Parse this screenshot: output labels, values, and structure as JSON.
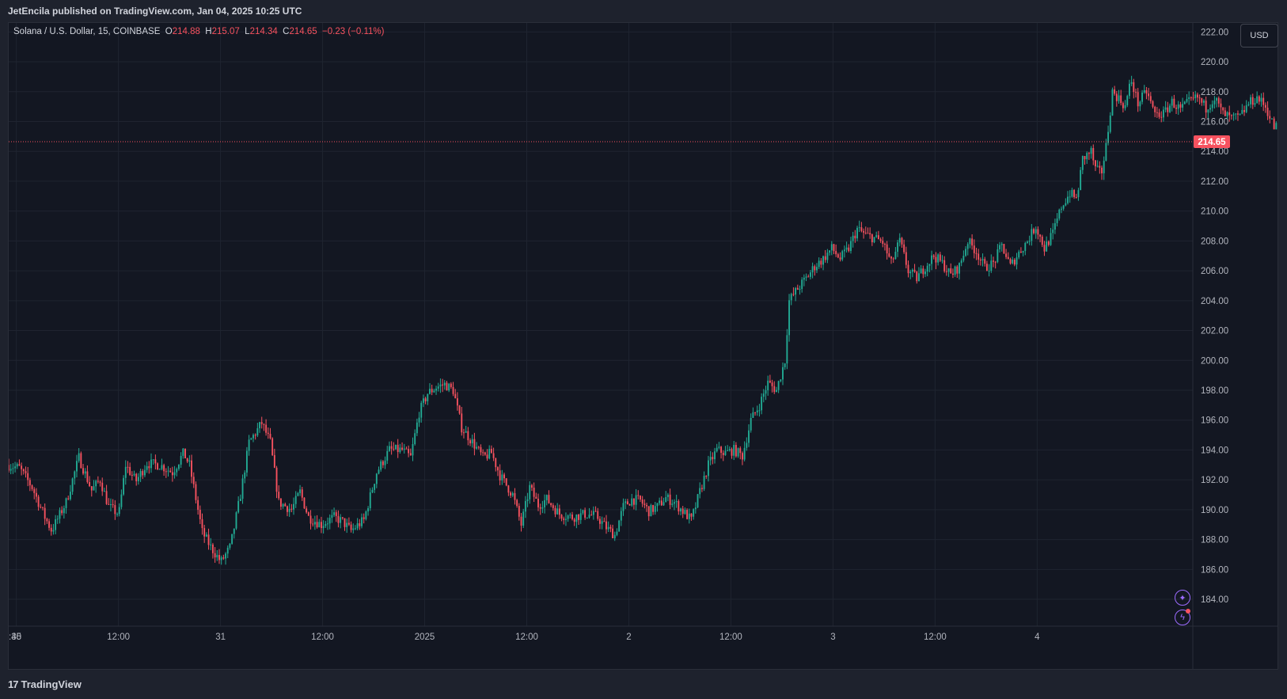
{
  "header": {
    "published": "JetEncila published on TradingView.com, Jan 04, 2025 10:25 UTC"
  },
  "legend": {
    "symbol": "Solana / U.S. Dollar, 15, COINBASE",
    "o_label": "O",
    "o_value": "214.88",
    "h_label": "H",
    "h_value": "215.07",
    "l_label": "L",
    "l_value": "214.34",
    "c_label": "C",
    "c_value": "214.65",
    "change": "−0.23 (−0.11%)"
  },
  "toolbar": {
    "currency": "USD"
  },
  "footer": {
    "brand": "TradingView",
    "brand_mark": "17"
  },
  "icons": {
    "alert": "sparkle-icon",
    "lightning": "lightning-icon"
  },
  "colors": {
    "up": "#22ab94",
    "down": "#f7525f",
    "background": "#131722",
    "grid": "#1f2430",
    "text": "#d1d4dc",
    "price_badge": "#f7525f"
  },
  "chart_data": {
    "type": "candlestick",
    "symbol": "SOLUSD",
    "exchange": "COINBASE",
    "interval_minutes": 15,
    "y_range": [
      182.2,
      222.6
    ],
    "y_ticks": [
      222,
      220,
      218,
      216,
      214,
      212,
      210,
      208,
      206,
      204,
      202,
      200,
      198,
      196,
      194,
      192,
      190,
      188,
      186,
      184
    ],
    "x_ticks": [
      {
        "label": ":45",
        "t": 0
      },
      {
        "label": "30",
        "t": 0.9
      },
      {
        "label": "12:00",
        "t": 12.9
      },
      {
        "label": "31",
        "t": 24.9
      },
      {
        "label": "12:00",
        "t": 36.9
      },
      {
        "label": "2025",
        "t": 48.9
      },
      {
        "label": "12:00",
        "t": 60.9
      },
      {
        "label": "2",
        "t": 72.9
      },
      {
        "label": "12:00",
        "t": 84.9
      },
      {
        "label": "3",
        "t": 96.9
      },
      {
        "label": "12:00",
        "t": 108.9
      },
      {
        "label": "4",
        "t": 120.9
      }
    ],
    "x_unit": "hours",
    "x_visible_hours": 139.2,
    "last_close": 214.65,
    "last_label": "214.65",
    "price_path": [
      [
        0,
        193.0
      ],
      [
        1.5,
        192.8
      ],
      [
        3.0,
        191.5
      ],
      [
        4.5,
        189.5
      ],
      [
        5.3,
        188.6
      ],
      [
        7.0,
        190.5
      ],
      [
        8.5,
        193.5
      ],
      [
        10.0,
        191.3
      ],
      [
        11.0,
        192.0
      ],
      [
        12.0,
        190.2
      ],
      [
        13.2,
        189.7
      ],
      [
        14.0,
        193.0
      ],
      [
        15.2,
        191.9
      ],
      [
        16.5,
        193.1
      ],
      [
        18.0,
        193.0
      ],
      [
        19.5,
        192.5
      ],
      [
        20.8,
        193.8
      ],
      [
        21.5,
        193.0
      ],
      [
        23.0,
        188.5
      ],
      [
        24.0,
        187.5
      ],
      [
        25.2,
        186.5
      ],
      [
        26.3,
        187.5
      ],
      [
        27.5,
        191.0
      ],
      [
        28.5,
        194.5
      ],
      [
        30.0,
        195.8
      ],
      [
        31.0,
        194.5
      ],
      [
        32.0,
        190.5
      ],
      [
        33.5,
        190.0
      ],
      [
        34.5,
        191.2
      ],
      [
        35.5,
        189.5
      ],
      [
        37.0,
        189.0
      ],
      [
        38.5,
        189.5
      ],
      [
        39.5,
        189.2
      ],
      [
        40.5,
        188.6
      ],
      [
        42.0,
        189.3
      ],
      [
        43.5,
        192.5
      ],
      [
        45.0,
        194.0
      ],
      [
        46.5,
        194.0
      ],
      [
        47.5,
        193.5
      ],
      [
        48.5,
        196.5
      ],
      [
        49.5,
        197.8
      ],
      [
        50.5,
        198.2
      ],
      [
        51.5,
        198.4
      ],
      [
        52.5,
        198.0
      ],
      [
        53.5,
        195.5
      ],
      [
        54.8,
        194.5
      ],
      [
        56.0,
        193.5
      ],
      [
        57.0,
        193.8
      ],
      [
        58.0,
        192.3
      ],
      [
        59.5,
        191.0
      ],
      [
        60.5,
        189.0
      ],
      [
        61.5,
        191.5
      ],
      [
        62.5,
        190.3
      ],
      [
        63.5,
        190.7
      ],
      [
        65.0,
        189.7
      ],
      [
        66.5,
        189.5
      ],
      [
        68.0,
        189.7
      ],
      [
        69.3,
        189.6
      ],
      [
        70.5,
        188.8
      ],
      [
        71.5,
        188.3
      ],
      [
        72.5,
        190.2
      ],
      [
        73.5,
        190.7
      ],
      [
        74.5,
        190.6
      ],
      [
        75.5,
        189.9
      ],
      [
        76.5,
        190.2
      ],
      [
        77.5,
        190.8
      ],
      [
        78.5,
        190.5
      ],
      [
        79.5,
        189.9
      ],
      [
        80.5,
        189.3
      ],
      [
        81.5,
        191.2
      ],
      [
        82.5,
        193.0
      ],
      [
        83.5,
        194.0
      ],
      [
        84.5,
        193.8
      ],
      [
        85.5,
        194.0
      ],
      [
        86.5,
        193.6
      ],
      [
        87.5,
        196.0
      ],
      [
        88.5,
        197.0
      ],
      [
        89.5,
        198.5
      ],
      [
        90.5,
        198.0
      ],
      [
        91.5,
        200.0
      ],
      [
        92.0,
        204.0
      ],
      [
        93.0,
        204.8
      ],
      [
        94.0,
        205.5
      ],
      [
        95.0,
        206.3
      ],
      [
        96.0,
        206.8
      ],
      [
        97.0,
        207.5
      ],
      [
        98.0,
        206.8
      ],
      [
        99.0,
        207.5
      ],
      [
        100.0,
        208.8
      ],
      [
        101.0,
        208.4
      ],
      [
        102.0,
        208.2
      ],
      [
        103.0,
        207.9
      ],
      [
        104.0,
        206.5
      ],
      [
        105.0,
        208.0
      ],
      [
        106.0,
        206.0
      ],
      [
        107.0,
        205.5
      ],
      [
        108.0,
        206.3
      ],
      [
        109.0,
        207.0
      ],
      [
        110.0,
        206.5
      ],
      [
        111.0,
        205.7
      ],
      [
        112.0,
        206.3
      ],
      [
        113.0,
        208.0
      ],
      [
        114.0,
        207.3
      ],
      [
        115.0,
        206.2
      ],
      [
        116.0,
        206.5
      ],
      [
        117.0,
        207.7
      ],
      [
        118.0,
        206.3
      ],
      [
        119.0,
        207.2
      ],
      [
        120.0,
        208.0
      ],
      [
        121.0,
        209.0
      ],
      [
        122.0,
        207.5
      ],
      [
        123.0,
        208.5
      ],
      [
        124.0,
        210.3
      ],
      [
        125.0,
        211.2
      ],
      [
        125.8,
        210.8
      ],
      [
        126.5,
        213.5
      ],
      [
        127.5,
        214.0
      ],
      [
        128.0,
        212.8
      ],
      [
        128.7,
        212.5
      ],
      [
        129.3,
        214.5
      ],
      [
        130.0,
        218.0
      ],
      [
        130.8,
        217.5
      ],
      [
        131.5,
        217.0
      ],
      [
        132.2,
        218.8
      ],
      [
        133.0,
        217.2
      ],
      [
        134.0,
        218.0
      ],
      [
        135.0,
        216.5
      ],
      [
        136.0,
        216.5
      ],
      [
        137.0,
        217.3
      ],
      [
        138.0,
        216.8
      ],
      [
        139.0,
        217.3
      ],
      [
        140.0,
        217.6
      ],
      [
        141.0,
        216.9
      ],
      [
        142.0,
        217.6
      ],
      [
        143.0,
        216.5
      ],
      [
        144.0,
        216.2
      ],
      [
        145.0,
        216.3
      ],
      [
        146.0,
        217.2
      ],
      [
        147.0,
        217.6
      ],
      [
        148.0,
        217.0
      ],
      [
        149.0,
        215.6
      ],
      [
        149.6,
        215.8
      ],
      [
        150.5,
        214.65
      ]
    ]
  }
}
